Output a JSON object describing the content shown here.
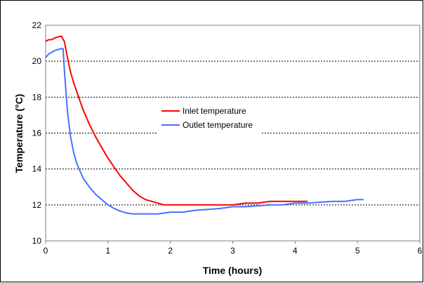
{
  "chart_data": {
    "type": "line",
    "title": "",
    "xlabel": "Time (hours)",
    "ylabel": "Temperature (°C)",
    "xlim": [
      0,
      6
    ],
    "ylim": [
      10,
      22
    ],
    "x_ticks": [
      "0",
      "1",
      "2",
      "3",
      "4",
      "5",
      "6"
    ],
    "y_ticks": [
      "10",
      "12",
      "14",
      "16",
      "18",
      "20",
      "22"
    ],
    "grid": "horizontal dotted",
    "legend_position": "center",
    "series": [
      {
        "name": "Inlet temperature",
        "color": "#ff0000",
        "x": [
          0.0,
          0.05,
          0.1,
          0.15,
          0.2,
          0.25,
          0.3,
          0.35,
          0.4,
          0.45,
          0.5,
          0.6,
          0.7,
          0.8,
          0.9,
          1.0,
          1.1,
          1.2,
          1.3,
          1.4,
          1.5,
          1.6,
          1.7,
          1.8,
          1.9,
          2.0,
          2.2,
          2.4,
          2.6,
          2.8,
          3.0,
          3.2,
          3.4,
          3.6,
          3.8,
          4.0,
          4.2
        ],
        "y": [
          21.1,
          21.2,
          21.2,
          21.3,
          21.35,
          21.4,
          21.1,
          20.2,
          19.4,
          18.8,
          18.3,
          17.3,
          16.5,
          15.8,
          15.2,
          14.6,
          14.1,
          13.6,
          13.2,
          12.8,
          12.5,
          12.3,
          12.2,
          12.1,
          12.0,
          12.0,
          12.0,
          12.0,
          12.0,
          12.0,
          12.0,
          12.1,
          12.1,
          12.2,
          12.2,
          12.2,
          12.2
        ]
      },
      {
        "name": "Outlet temperature",
        "color": "#4472ff",
        "x": [
          0.0,
          0.05,
          0.1,
          0.15,
          0.2,
          0.25,
          0.28,
          0.3,
          0.35,
          0.4,
          0.45,
          0.5,
          0.6,
          0.7,
          0.8,
          0.9,
          1.0,
          1.1,
          1.2,
          1.3,
          1.4,
          1.6,
          1.8,
          2.0,
          2.2,
          2.4,
          2.6,
          2.8,
          3.0,
          3.2,
          3.4,
          3.6,
          3.8,
          4.0,
          4.2,
          4.4,
          4.6,
          4.8,
          5.0,
          5.1
        ],
        "y": [
          20.2,
          20.4,
          20.5,
          20.6,
          20.65,
          20.7,
          20.7,
          19.5,
          17.2,
          15.8,
          14.9,
          14.3,
          13.5,
          13.0,
          12.6,
          12.3,
          12.0,
          11.8,
          11.65,
          11.55,
          11.5,
          11.5,
          11.5,
          11.6,
          11.6,
          11.7,
          11.75,
          11.8,
          11.9,
          11.9,
          11.95,
          12.0,
          12.0,
          12.1,
          12.1,
          12.15,
          12.2,
          12.2,
          12.3,
          12.3
        ]
      }
    ]
  }
}
